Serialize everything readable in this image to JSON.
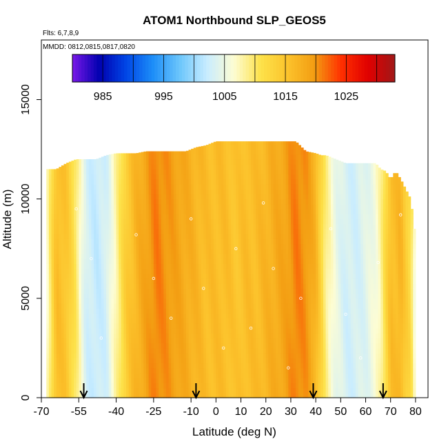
{
  "chart_data": {
    "type": "heatmap",
    "title": "ATOM1 Northbound SLP_GEOS5",
    "annotations": [
      "Flts: 6,7,8,9",
      "MMDD: 0812,0815,0817,0820"
    ],
    "xlabel": "Latitude (deg N)",
    "ylabel": "Altitude (m)",
    "xlim": [
      -70,
      85
    ],
    "ylim": [
      0,
      18000
    ],
    "x_ticks": [
      -70,
      -55,
      -40,
      -25,
      -10,
      0,
      10,
      20,
      30,
      40,
      50,
      60,
      70,
      80
    ],
    "x_tick_labels": [
      "-70",
      "-55",
      "-40",
      "-25",
      "-10",
      "0",
      "10",
      "20",
      "30",
      "40",
      "50",
      "60",
      "70",
      "80"
    ],
    "y_ticks": [
      0,
      5000,
      10000,
      15000
    ],
    "y_tick_labels": [
      "0",
      "5000",
      "10000",
      "15000"
    ],
    "colorbar": {
      "range": [
        980,
        1033
      ],
      "tick_values": [
        985,
        995,
        1005,
        1015,
        1025
      ],
      "tick_labels": [
        "985",
        "995",
        "1005",
        "1015",
        "1025"
      ],
      "colors": [
        "#7a18e8",
        "#0000b0",
        "#0046e6",
        "#1d8ef8",
        "#6cc6fb",
        "#c8ecff",
        "#fdfdd4",
        "#fde24a",
        "#fcc32c",
        "#f39d12",
        "#ff3000",
        "#e00000",
        "#a01818"
      ]
    },
    "profile": {
      "lat": [
        -68,
        -64,
        -60,
        -56,
        -54,
        -52,
        -48,
        -44,
        -40,
        -36,
        -32,
        -28,
        -24,
        -20,
        -16,
        -12,
        -8,
        -4,
        0,
        4,
        8,
        12,
        16,
        20,
        24,
        28,
        32,
        36,
        40,
        42,
        44,
        48,
        52,
        56,
        60,
        64,
        66,
        68,
        70,
        72,
        74,
        76,
        78,
        80
      ],
      "slp": [
        1006,
        1016,
        1015,
        1010,
        1006,
        1003,
        1002,
        1003,
        1008,
        1014,
        1017,
        1019,
        1021,
        1020,
        1019,
        1018,
        1017,
        1016,
        1016,
        1016,
        1015,
        1016,
        1016,
        1017,
        1018,
        1019,
        1021,
        1020,
        1017,
        1013,
        1009,
        1005,
        1003,
        1003,
        1004,
        1006,
        1008,
        1012,
        1016,
        1016,
        1017,
        1014,
        1012,
        1005
      ],
      "top_altitude": [
        11500,
        11500,
        11800,
        12000,
        12000,
        12000,
        12000,
        12200,
        12300,
        12300,
        12300,
        12400,
        12400,
        12400,
        12400,
        12400,
        12600,
        12700,
        12900,
        12900,
        12900,
        12900,
        12900,
        12900,
        12900,
        12900,
        12900,
        12400,
        12300,
        12200,
        12200,
        12000,
        11800,
        11800,
        11800,
        11800,
        11500,
        11400,
        11000,
        11400,
        11000,
        10500,
        10000,
        8000
      ]
    },
    "flight_markers_lat": [
      -53,
      -8,
      39,
      67
    ],
    "sample_points": [
      {
        "lat": -56,
        "alt": 9500
      },
      {
        "lat": -50,
        "alt": 7000
      },
      {
        "lat": -46,
        "alt": 3000
      },
      {
        "lat": -32,
        "alt": 8200
      },
      {
        "lat": -25,
        "alt": 6000
      },
      {
        "lat": -18,
        "alt": 4000
      },
      {
        "lat": -10,
        "alt": 9000
      },
      {
        "lat": -5,
        "alt": 5500
      },
      {
        "lat": 3,
        "alt": 2500
      },
      {
        "lat": 8,
        "alt": 7500
      },
      {
        "lat": 14,
        "alt": 3500
      },
      {
        "lat": 19,
        "alt": 9800
      },
      {
        "lat": 23,
        "alt": 6500
      },
      {
        "lat": 29,
        "alt": 1500
      },
      {
        "lat": 34,
        "alt": 5000
      },
      {
        "lat": 46,
        "alt": 8500
      },
      {
        "lat": 52,
        "alt": 4200
      },
      {
        "lat": 58,
        "alt": 2000
      },
      {
        "lat": 65,
        "alt": 6800
      },
      {
        "lat": 74,
        "alt": 9200
      }
    ]
  }
}
